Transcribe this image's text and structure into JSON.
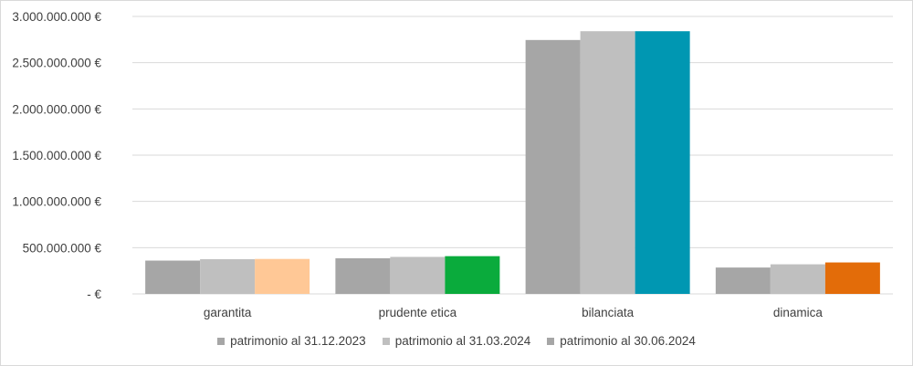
{
  "chart_data": {
    "type": "bar",
    "categories": [
      "garantita",
      "prudente etica",
      "bilanciata",
      "dinamica"
    ],
    "series": [
      {
        "name": "patrimonio al 31.12.2023",
        "values": [
          360000000,
          385000000,
          2745000000,
          285000000
        ],
        "color": "#a6a6a6"
      },
      {
        "name": "patrimonio al 31.03.2024",
        "values": [
          375000000,
          400000000,
          2840000000,
          320000000
        ],
        "color": "#bfbfbf"
      },
      {
        "name": "patrimonio al 30.06.2024",
        "values": [
          378000000,
          408000000,
          2840000000,
          340000000
        ],
        "color": "#a6a6a6"
      }
    ],
    "highlight_colors": [
      "#ffc896",
      "#0aab3c",
      "#0097b2",
      "#e36c09"
    ],
    "y_ticks": [
      {
        "value": 0,
        "label": "-   €"
      },
      {
        "value": 500000000,
        "label": "500.000.000 €"
      },
      {
        "value": 1000000000,
        "label": "1.000.000.000 €"
      },
      {
        "value": 1500000000,
        "label": "1.500.000.000 €"
      },
      {
        "value": 2000000000,
        "label": "2.000.000.000 €"
      },
      {
        "value": 2500000000,
        "label": "2.500.000.000 €"
      },
      {
        "value": 3000000000,
        "label": "3.000.000.000 €"
      }
    ],
    "ylim": [
      0,
      3000000000
    ],
    "grid": true,
    "legend_position": "bottom"
  }
}
